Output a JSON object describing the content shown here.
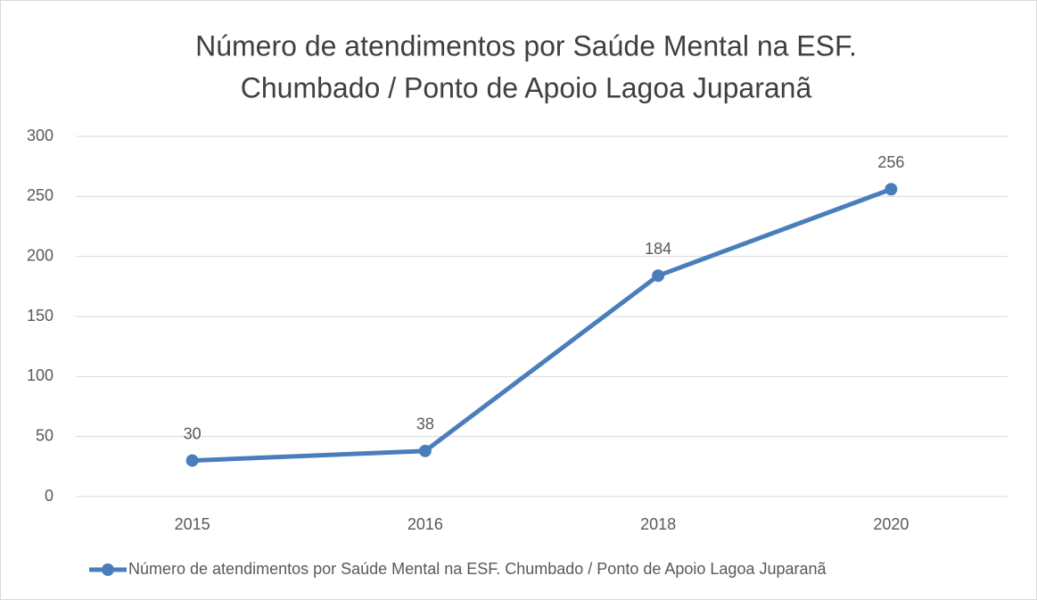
{
  "chart_data": {
    "type": "line",
    "title": [
      "Número de atendimentos por Saúde Mental na ESF.",
      "Chumbado / Ponto de Apoio Lagoa Juparanã"
    ],
    "categories": [
      "2015",
      "2016",
      "2018",
      "2020"
    ],
    "series": [
      {
        "name": "Número de atendimentos por Saúde Mental na ESF. Chumbado / Ponto de Apoio Lagoa Juparanã",
        "color": "#4a7ebb",
        "values": [
          30,
          38,
          184,
          256
        ]
      }
    ],
    "ylim": [
      0,
      300
    ],
    "yticks": [
      0,
      50,
      100,
      150,
      200,
      250,
      300
    ],
    "grid": true,
    "legend": "bottom",
    "data_labels": true
  }
}
